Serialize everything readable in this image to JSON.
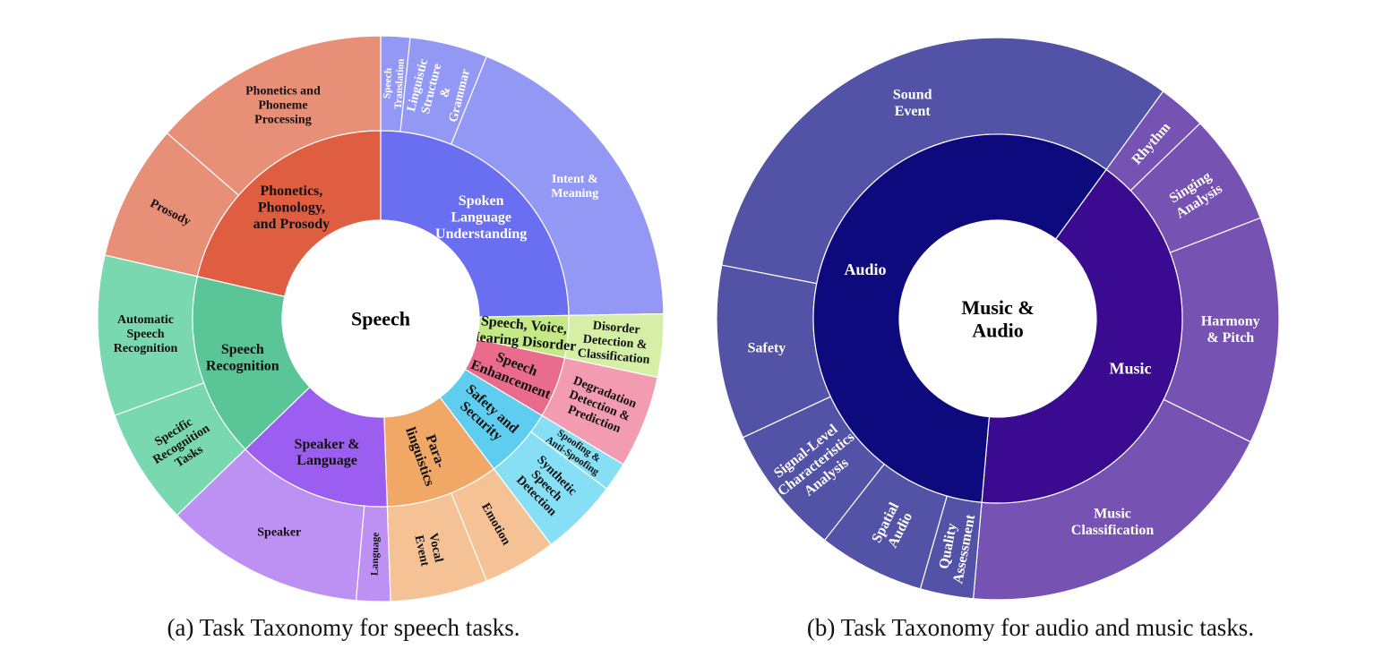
{
  "figures": [
    {
      "id": "a",
      "caption": "(a) Task Taxonomy for speech tasks.",
      "center": {
        "label": [
          "Speech"
        ],
        "color": "#000000"
      },
      "inner_ring": [
        {
          "label": [
            "Spoken",
            "Language",
            "Understanding"
          ],
          "color": "#6a6ef0",
          "text_color": "#ffffff",
          "start": 0,
          "end": 89
        },
        {
          "label": [
            "Speech, Voice,",
            "Hearing Disorder"
          ],
          "color": "#c3ea87",
          "text_color": "#111111",
          "start": 89,
          "end": 102
        },
        {
          "label": [
            "Speech",
            "Enhancement"
          ],
          "color": "#ea6c8c",
          "text_color": "#111111",
          "start": 102,
          "end": 121
        },
        {
          "label": [
            "Safety and",
            "Security"
          ],
          "color": "#5fcdf0",
          "text_color": "#111111",
          "start": 121,
          "end": 143
        },
        {
          "label": [
            "Para-",
            "linguistics"
          ],
          "color": "#f1a766",
          "text_color": "#111111",
          "start": 143,
          "end": 178
        },
        {
          "label": [
            "Speaker &",
            "Language"
          ],
          "color": "#9c5ef0",
          "text_color": "#111111",
          "start": 178,
          "end": 226
        },
        {
          "label": [
            "Speech",
            "Recognition"
          ],
          "color": "#5ac596",
          "text_color": "#111111",
          "start": 226,
          "end": 283
        },
        {
          "label": [
            "Phonetics,",
            "Phonology,",
            "and Prosody"
          ],
          "color": "#df5e42",
          "text_color": "#111111",
          "start": 283,
          "end": 360
        }
      ],
      "outer_ring": [
        {
          "label": [
            "Speech",
            "Translation"
          ],
          "color": "#9398f4",
          "text_color": "#ffffff",
          "start": 0,
          "end": 6
        },
        {
          "label": [
            "Linguistic",
            "Structure",
            "&",
            "Grammar"
          ],
          "color": "#9398f4",
          "text_color": "#ffffff",
          "start": 6,
          "end": 22
        },
        {
          "label": [
            "Intent &",
            "Meaning"
          ],
          "color": "#9398f4",
          "text_color": "#ffffff",
          "start": 22,
          "end": 89
        },
        {
          "label": [
            "Disorder",
            "Detection &",
            "Classification"
          ],
          "color": "#d5efa6",
          "text_color": "#111111",
          "start": 89,
          "end": 102
        },
        {
          "label": [
            "Degradation",
            "Detection &",
            "Prediction"
          ],
          "color": "#f29bb1",
          "text_color": "#111111",
          "start": 102,
          "end": 121
        },
        {
          "label": [
            "Spoofing &",
            "Anti-Spoofing"
          ],
          "color": "#86dff4",
          "text_color": "#111111",
          "start": 121,
          "end": 127
        },
        {
          "label": [
            "Synthetic",
            "Speech",
            "Detection"
          ],
          "color": "#86dff4",
          "text_color": "#111111",
          "start": 127,
          "end": 143
        },
        {
          "label": [
            "Emotion"
          ],
          "color": "#f4c295",
          "text_color": "#111111",
          "start": 143,
          "end": 158
        },
        {
          "label": [
            "Vocal",
            "Event"
          ],
          "color": "#f4c295",
          "text_color": "#111111",
          "start": 158,
          "end": 178
        },
        {
          "label": [
            "Language"
          ],
          "color": "#bd91f4",
          "text_color": "#111111",
          "start": 178,
          "end": 185
        },
        {
          "label": [
            "Speaker"
          ],
          "color": "#bd91f4",
          "text_color": "#111111",
          "start": 185,
          "end": 226
        },
        {
          "label": [
            "Specific",
            "Recognition",
            "Tasks"
          ],
          "color": "#79d8b0",
          "text_color": "#111111",
          "start": 226,
          "end": 250
        },
        {
          "label": [
            "Automatic",
            "Speech",
            "Recognition"
          ],
          "color": "#79d8b0",
          "text_color": "#111111",
          "start": 250,
          "end": 283
        },
        {
          "label": [
            "Prosody"
          ],
          "color": "#e88f78",
          "text_color": "#111111",
          "start": 283,
          "end": 311
        },
        {
          "label": [
            "Phonetics and",
            "Phoneme",
            "Processing"
          ],
          "color": "#e88f78",
          "text_color": "#111111",
          "start": 311,
          "end": 360
        }
      ]
    },
    {
      "id": "b",
      "caption": "(b) Task Taxonomy for audio and music tasks.",
      "center": {
        "label": [
          "Music &",
          "Audio"
        ],
        "color": "#000000"
      },
      "inner_ring": [
        {
          "label": [
            "Music"
          ],
          "color": "#3a0b91",
          "text_color": "#ffffff",
          "start": 36,
          "end": 185
        },
        {
          "label": [
            "Audio"
          ],
          "color": "#0d0a7e",
          "text_color": "#ffffff",
          "start": 185,
          "end": 396
        }
      ],
      "outer_ring": [
        {
          "label": [
            "Rhythm"
          ],
          "color": "#7653b3",
          "text_color": "#ffffff",
          "start": 36,
          "end": 46
        },
        {
          "label": [
            "Singing",
            "Analysis"
          ],
          "color": "#7653b3",
          "text_color": "#ffffff",
          "start": 46,
          "end": 69
        },
        {
          "label": [
            "Harmony",
            "& Pitch"
          ],
          "color": "#7653b3",
          "text_color": "#ffffff",
          "start": 69,
          "end": 116
        },
        {
          "label": [
            "Music",
            "Classification"
          ],
          "color": "#7653b3",
          "text_color": "#ffffff",
          "start": 116,
          "end": 185
        },
        {
          "label": [
            "Quality",
            "Assessment"
          ],
          "color": "#5252a6",
          "text_color": "#ffffff",
          "start": 185,
          "end": 196
        },
        {
          "label": [
            "Spatial",
            "Audio"
          ],
          "color": "#5252a6",
          "text_color": "#ffffff",
          "start": 196,
          "end": 218
        },
        {
          "label": [
            "Signal-Level",
            "Characteristics",
            "Analysis"
          ],
          "color": "#5252a6",
          "text_color": "#ffffff",
          "start": 218,
          "end": 245
        },
        {
          "label": [
            "Safety"
          ],
          "color": "#5252a6",
          "text_color": "#ffffff",
          "start": 245,
          "end": 281
        },
        {
          "label": [
            "Sound",
            "Event"
          ],
          "color": "#5252a6",
          "text_color": "#ffffff",
          "start": 281,
          "end": 396
        }
      ]
    }
  ]
}
